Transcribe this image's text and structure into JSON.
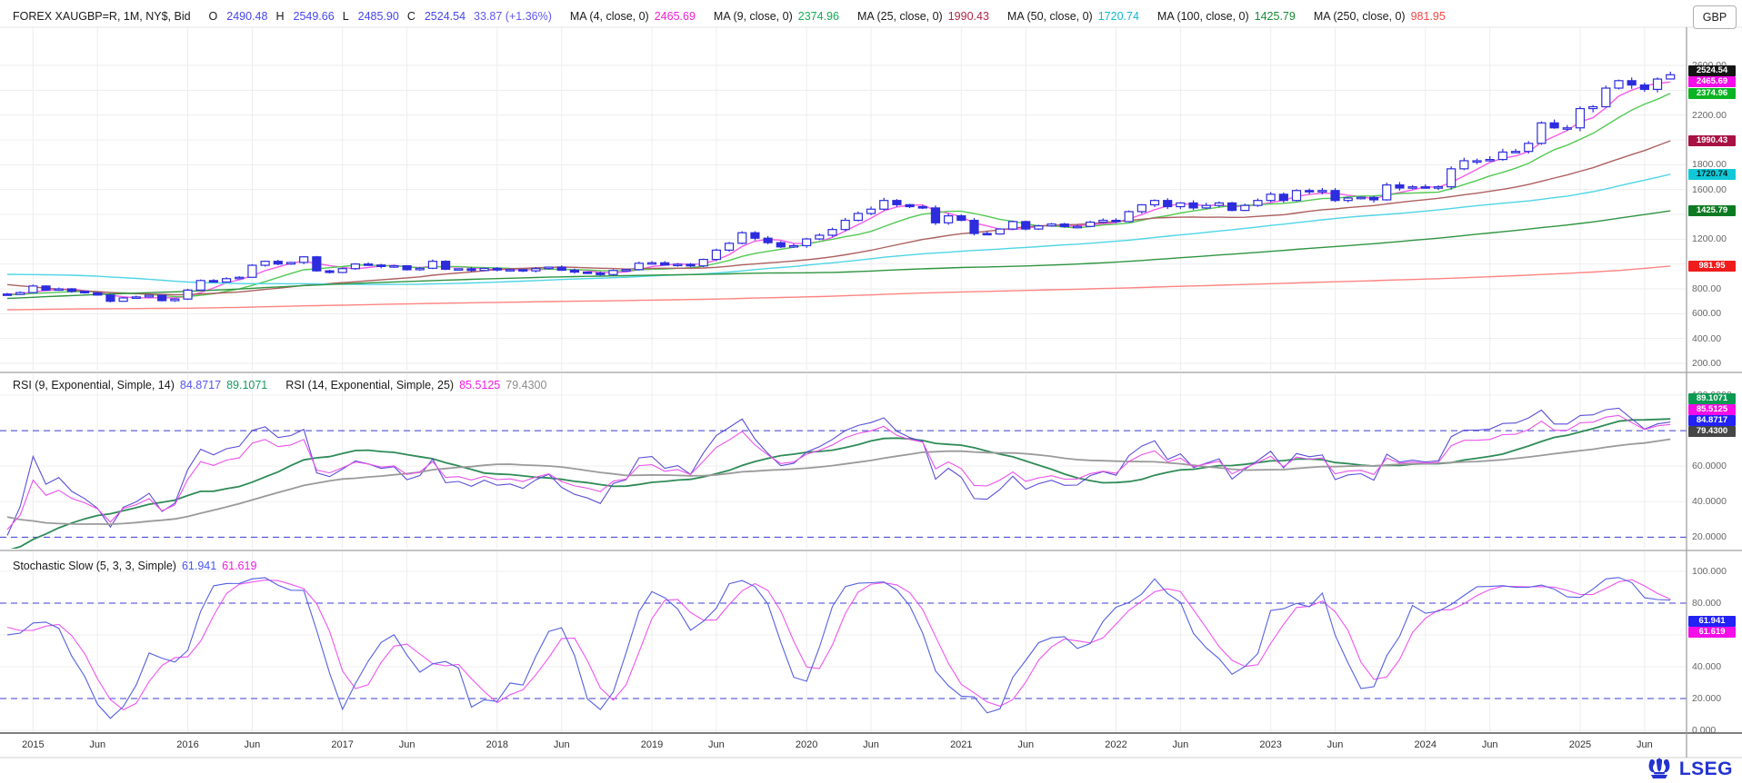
{
  "header": {
    "instrument": "FOREX XAUGBP=R, 1M, NY$, Bid",
    "ohlc": {
      "o_label": "O",
      "o": "2490.48",
      "h_label": "H",
      "h": "2549.66",
      "l_label": "L",
      "l": "2485.90",
      "c_label": "C",
      "c": "2524.54",
      "change": "33.87 (+1.36%)"
    },
    "ohlc_color": "#4646ee",
    "change_color": "#6156f2",
    "mas": [
      {
        "label": "MA (4, close, 0)",
        "value": "2465.69",
        "color": "#f020d8"
      },
      {
        "label": "MA (9, close, 0)",
        "value": "2374.96",
        "color": "#10b050"
      },
      {
        "label": "MA (25, close, 0)",
        "value": "1990.43",
        "color": "#b02545"
      },
      {
        "label": "MA (50, close, 0)",
        "value": "1720.74",
        "color": "#12b8cf"
      },
      {
        "label": "MA (100, close, 0)",
        "value": "1425.79",
        "color": "#168c34"
      },
      {
        "label": "MA (250, close, 0)",
        "value": "981.95",
        "color": "#f44545"
      }
    ],
    "currency_button": "GBP"
  },
  "rsi_legend": {
    "label1": "RSI (9, Exponential, Simple, 14)",
    "v1a": "84.8717",
    "v1a_color": "#5555f0",
    "v1b": "89.1071",
    "v1b_color": "#169a5e",
    "label2": "RSI (14, Exponential, Simple, 25)",
    "v2a": "85.5125",
    "v2a_color": "#f01ce4",
    "v2b": "79.4300",
    "v2b_color": "#8c8c8c"
  },
  "stoch_legend": {
    "label": "Stochastic Slow (5, 3, 3, Simple)",
    "k": "61.941",
    "k_color": "#4656f0",
    "d": "61.619",
    "d_color": "#f01ce4"
  },
  "price_axis": {
    "ticks": [
      {
        "text": "2600.00",
        "v": 2600
      },
      {
        "text": "2200.00",
        "v": 2200
      },
      {
        "text": "1800.00",
        "v": 1800
      },
      {
        "text": "1600.00",
        "v": 1600
      },
      {
        "text": "1200.00",
        "v": 1200
      },
      {
        "text": "800.00",
        "v": 800
      },
      {
        "text": "600.00",
        "v": 600
      },
      {
        "text": "400.00",
        "v": 400
      },
      {
        "text": "200.00",
        "v": 200
      }
    ],
    "badges": [
      {
        "text": "2524.54",
        "v": 2524.54,
        "bg": "#141414",
        "fg": "#ffffff"
      },
      {
        "text": "2465.69",
        "v": 2465.69,
        "bg": "#f50ce8",
        "fg": "#ffffff"
      },
      {
        "text": "2374.96",
        "v": 2374.96,
        "bg": "#0cb422",
        "fg": "#ffffff"
      },
      {
        "text": "1990.43",
        "v": 1990.43,
        "bg": "#a81144",
        "fg": "#ffffff"
      },
      {
        "text": "1720.74",
        "v": 1720.74,
        "bg": "#10c8d8",
        "fg": "#002222"
      },
      {
        "text": "1425.79",
        "v": 1425.79,
        "bg": "#0c7a22",
        "fg": "#ffffff"
      },
      {
        "text": "981.95",
        "v": 981.95,
        "bg": "#f01c1c",
        "fg": "#ffffff"
      }
    ]
  },
  "rsi_axis": {
    "ticks": [
      {
        "text": "100.0000",
        "v": 100
      },
      {
        "text": "60.0000",
        "v": 60
      },
      {
        "text": "40.0000",
        "v": 40
      },
      {
        "text": "20.0000",
        "v": 20
      }
    ],
    "badges": [
      {
        "text": "89.1071",
        "v": 89.1071,
        "bg": "#0c9a52",
        "fg": "#ffffff"
      },
      {
        "text": "85.5125",
        "v": 85.5125,
        "bg": "#f50ce8",
        "fg": "#ffffff"
      },
      {
        "text": "84.8717",
        "v": 84.8717,
        "bg": "#2222f5",
        "fg": "#ffffff"
      },
      {
        "text": "79.4300",
        "v": 79.43,
        "bg": "#464646",
        "fg": "#ffffff"
      }
    ]
  },
  "stoch_axis": {
    "ticks": [
      {
        "text": "100.000",
        "v": 100
      },
      {
        "text": "80.000",
        "v": 80
      },
      {
        "text": "40.000",
        "v": 40
      },
      {
        "text": "20.000",
        "v": 20
      },
      {
        "text": "0.000",
        "v": 0
      }
    ],
    "badges": [
      {
        "text": "61.941",
        "v": 61.941,
        "bg": "#2222f5",
        "fg": "#ffffff"
      },
      {
        "text": "61.619",
        "v": 61.619,
        "bg": "#f50ce8",
        "fg": "#ffffff"
      }
    ]
  },
  "branding": {
    "logo_text": "LSEG",
    "logo_color": "#2433d0"
  },
  "chart_data": {
    "type": "candlestick+indicators",
    "symbol": "XAUGBP=R",
    "interval": "1M",
    "currency": "GBP",
    "price_axis_range": [
      200,
      2600
    ],
    "rsi_axis_range": [
      0,
      100
    ],
    "stoch_axis_range": [
      0,
      100
    ],
    "start_month": "2014-11",
    "closes": [
      755,
      770,
      823,
      790,
      800,
      780,
      768,
      750,
      700,
      727,
      735,
      748,
      705,
      718,
      790,
      867,
      855,
      882,
      893,
      990,
      1022,
      1000,
      1013,
      1058,
      945,
      932,
      963,
      1000,
      992,
      980,
      986,
      954,
      966,
      1022,
      958,
      962,
      948,
      965,
      952,
      955,
      945,
      963,
      975,
      950,
      935,
      927,
      915,
      948,
      955,
      1006,
      1010,
      992,
      998,
      985,
      1037,
      1112,
      1167,
      1252,
      1208,
      1172,
      1138,
      1148,
      1202,
      1232,
      1278,
      1352,
      1407,
      1442,
      1512,
      1478,
      1462,
      1452,
      1332,
      1388,
      1352,
      1246,
      1242,
      1282,
      1342,
      1282,
      1307,
      1322,
      1302,
      1303,
      1337,
      1352,
      1342,
      1422,
      1477,
      1512,
      1462,
      1492,
      1452,
      1472,
      1492,
      1432,
      1472,
      1512,
      1562,
      1512,
      1592,
      1582,
      1592,
      1512,
      1532,
      1537,
      1517,
      1637,
      1612,
      1622,
      1617,
      1622,
      1767,
      1832,
      1832,
      1842,
      1902,
      1907,
      1972,
      2137,
      2097,
      2097,
      2252,
      2267,
      2417,
      2477,
      2442,
      2407,
      2490,
      2524.54
    ],
    "last_candle": {
      "o": 2490.48,
      "h": 2549.66,
      "l": 2485.9,
      "c": 2524.54
    },
    "prehistory_anchors": [
      [
        2004.5,
        215
      ],
      [
        2005,
        235
      ],
      [
        2006,
        300
      ],
      [
        2007,
        330
      ],
      [
        2008,
        420
      ],
      [
        2008.8,
        560
      ],
      [
        2009,
        600
      ],
      [
        2010,
        680
      ],
      [
        2011,
        880
      ],
      [
        2011.75,
        1130
      ],
      [
        2012,
        1020
      ],
      [
        2013,
        1030
      ],
      [
        2013.5,
        850
      ],
      [
        2014,
        740
      ],
      [
        2014.83,
        760
      ]
    ],
    "candle_color": "#2d2dde",
    "moving_averages": [
      {
        "period": 4,
        "color": "#f85ce8"
      },
      {
        "period": 9,
        "color": "#53c953"
      },
      {
        "period": 25,
        "color": "#ad5f5f"
      },
      {
        "period": 50,
        "color": "#4fd5e5"
      },
      {
        "period": 100,
        "color": "#2f9440"
      },
      {
        "period": 250,
        "color": "#ff8383"
      }
    ],
    "rsi": [
      {
        "period": 9,
        "smooth": 14,
        "line_color": "#5b4fd6",
        "smooth_color": "#2e8b57"
      },
      {
        "period": 14,
        "smooth": 25,
        "line_color": "#ea52ea",
        "smooth_color": "#9a9a9a"
      }
    ],
    "stochastic": {
      "k": 5,
      "k_smooth": 3,
      "d": 3,
      "k_color": "#5560e0",
      "d_color": "#ef55ef"
    },
    "thresholds": {
      "rsi": [
        80,
        20
      ],
      "stoch": [
        80,
        20
      ],
      "color": "#3d3dcf"
    },
    "time_labels": [
      {
        "text": "2015",
        "m": 2
      },
      {
        "text": "Jun",
        "m": 7
      },
      {
        "text": "2016",
        "m": 14
      },
      {
        "text": "Jun",
        "m": 19
      },
      {
        "text": "2017",
        "m": 26
      },
      {
        "text": "Jun",
        "m": 31
      },
      {
        "text": "2018",
        "m": 38
      },
      {
        "text": "Jun",
        "m": 43
      },
      {
        "text": "2019",
        "m": 50
      },
      {
        "text": "Jun",
        "m": 55
      },
      {
        "text": "2020",
        "m": 62
      },
      {
        "text": "Jun",
        "m": 67
      },
      {
        "text": "2021",
        "m": 74
      },
      {
        "text": "Jun",
        "m": 79
      },
      {
        "text": "2022",
        "m": 86
      },
      {
        "text": "Jun",
        "m": 91
      },
      {
        "text": "2023",
        "m": 98
      },
      {
        "text": "Jun",
        "m": 103
      },
      {
        "text": "2024",
        "m": 110
      },
      {
        "text": "Jun",
        "m": 115
      },
      {
        "text": "2025",
        "m": 122
      },
      {
        "text": "Jun",
        "m": 127
      }
    ]
  }
}
